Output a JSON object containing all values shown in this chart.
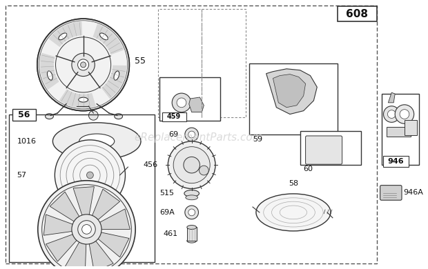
{
  "bg_color": "#ffffff",
  "line_color": "#333333",
  "text_color": "#111111",
  "watermark": "eReplacementParts.com",
  "watermark_color": "#cccccc",
  "main_box_label": "608",
  "fig_w": 6.2,
  "fig_h": 3.9,
  "dpi": 100,
  "label_fs": 8,
  "bold_fs": 9
}
